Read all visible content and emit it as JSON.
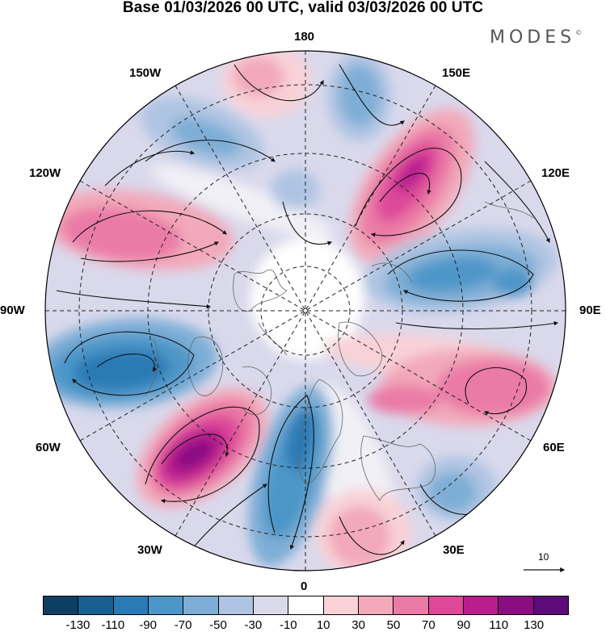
{
  "header": {
    "title": "Base 01/03/2026 00 UTC, valid 03/03/2026 00 UTC",
    "brand": "MODES",
    "brand_mark": "©"
  },
  "map": {
    "projection": "north polar stereographic",
    "longitude_labels": [
      "180",
      "150E",
      "120E",
      "90E",
      "60E",
      "30E",
      "0",
      "30W",
      "60W",
      "90W",
      "120W",
      "150W"
    ],
    "reference_vector_label": "10",
    "anomaly_centers": [
      {
        "sign": "positive",
        "near": "30W-60W",
        "magnitude": "110-130"
      },
      {
        "sign": "positive",
        "near": "150E-120E",
        "magnitude": "90-110"
      },
      {
        "sign": "positive",
        "near": "60E-90E",
        "magnitude": "50-70"
      },
      {
        "sign": "positive",
        "near": "120W-90W",
        "magnitude": "50-70"
      },
      {
        "sign": "negative",
        "near": "60W-90W",
        "magnitude": "-90 to -110"
      },
      {
        "sign": "negative",
        "near": "0-30W",
        "magnitude": "-70 to -90"
      },
      {
        "sign": "negative",
        "near": "90E-120E",
        "magnitude": "-50 to -70"
      },
      {
        "sign": "negative",
        "near": "180-150E",
        "magnitude": "-50 to -70"
      }
    ]
  },
  "colorbar": {
    "ticks": [
      "-130",
      "-110",
      "-90",
      "-70",
      "-50",
      "-30",
      "-10",
      "10",
      "30",
      "50",
      "70",
      "90",
      "110",
      "130"
    ],
    "colors": [
      "#0e3f63",
      "#1a5f92",
      "#2b7ab5",
      "#4d96c8",
      "#7eaed6",
      "#afc4e2",
      "#dad9ec",
      "#ffffff",
      "#f8d2d7",
      "#f2a9ba",
      "#ea7aa6",
      "#dd4899",
      "#b81e8e",
      "#8a0d82",
      "#5c0b78"
    ]
  }
}
